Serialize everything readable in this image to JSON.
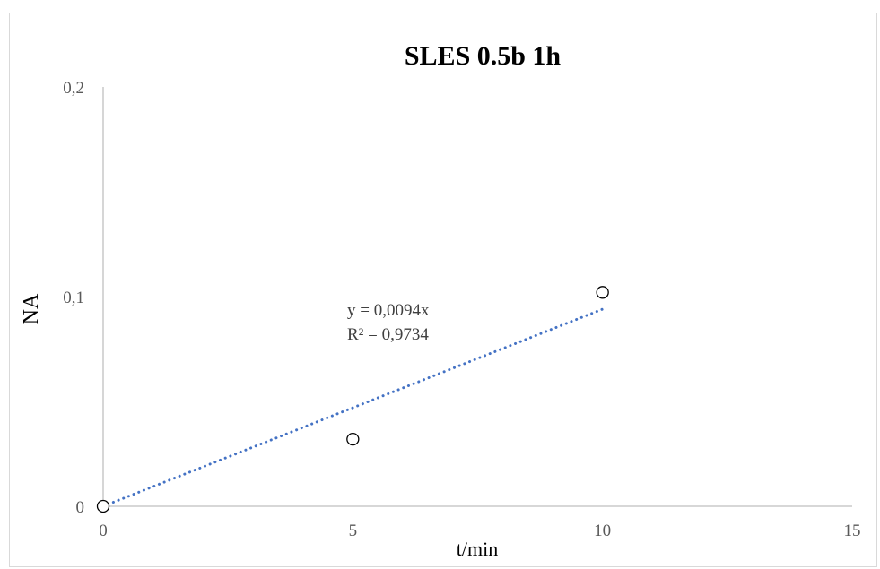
{
  "chart_data": {
    "type": "scatter",
    "title": "SLES 0.5b 1h",
    "xlabel": "t/min",
    "ylabel": "NA",
    "xlim": [
      0,
      15
    ],
    "ylim": [
      0,
      0.2
    ],
    "x_ticks": [
      "0",
      "5",
      "10",
      "15"
    ],
    "x_tick_values": [
      0,
      5,
      10,
      15
    ],
    "y_ticks": [
      "0",
      "0,1",
      "0,2"
    ],
    "y_tick_values": [
      0,
      0.1,
      0.2
    ],
    "grid": false,
    "legend": "none",
    "series": [
      {
        "x": [
          0,
          5,
          10
        ],
        "y": [
          0,
          0.032,
          0.102
        ],
        "marker": "open-circle",
        "color": "#000000"
      }
    ],
    "trendline": {
      "type": "linear",
      "slope": 0.0094,
      "intercept": 0,
      "x_range": [
        0,
        10
      ],
      "style": "dotted",
      "color": "#4472c4",
      "equation_label": "y = 0,0094x",
      "r2_label": "R² = 0,9734"
    }
  }
}
